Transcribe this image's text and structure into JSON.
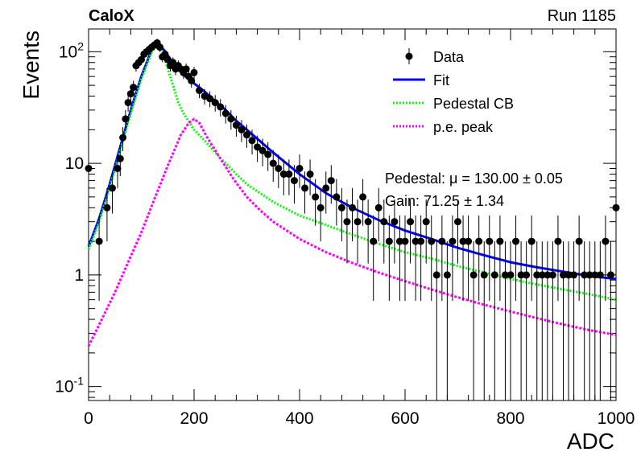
{
  "header": {
    "left_label": "CaloX",
    "right_label": "Run 1185"
  },
  "stats_box": {
    "line1": "Pedestal: μ = 130.00 ± 0.05",
    "line2": "Gain: 71.25 ± 1.34"
  },
  "chart_data": {
    "type": "scatter",
    "title": "",
    "xlabel": "ADC",
    "ylabel": "Events",
    "xlim": [
      0,
      1000
    ],
    "ylim": [
      0.075,
      160
    ],
    "yscale": "log",
    "grid": false,
    "legend_position": "top-right",
    "x_ticks": [
      "0",
      "200",
      "400",
      "600",
      "800",
      "1000"
    ],
    "y_ticks": [
      "10^-1",
      "1",
      "10",
      "10^2"
    ],
    "legend": [
      {
        "label": "Data",
        "color": "#000000",
        "style": "marker"
      },
      {
        "label": "Fit",
        "color": "#0000ff",
        "style": "solid"
      },
      {
        "label": "Pedestal CB",
        "color": "#00ff00",
        "style": "dotted"
      },
      {
        "label": "p.e. peak",
        "color": "#ff00ff",
        "style": "dotted"
      }
    ],
    "series": [
      {
        "name": "Data",
        "type": "scatter",
        "color": "#000000",
        "x": [
          0,
          20,
          35,
          45,
          55,
          60,
          65,
          70,
          75,
          80,
          85,
          90,
          95,
          100,
          105,
          110,
          115,
          120,
          125,
          130,
          135,
          140,
          145,
          150,
          155,
          160,
          165,
          170,
          175,
          180,
          185,
          190,
          195,
          200,
          210,
          220,
          230,
          240,
          250,
          260,
          270,
          280,
          290,
          300,
          310,
          320,
          330,
          340,
          350,
          360,
          370,
          380,
          390,
          400,
          410,
          420,
          430,
          440,
          450,
          460,
          470,
          480,
          490,
          500,
          510,
          520,
          530,
          540,
          550,
          560,
          570,
          580,
          590,
          600,
          610,
          620,
          630,
          640,
          650,
          660,
          670,
          680,
          690,
          700,
          710,
          720,
          730,
          740,
          750,
          760,
          770,
          780,
          790,
          800,
          810,
          820,
          830,
          840,
          850,
          860,
          870,
          880,
          890,
          900,
          910,
          920,
          930,
          940,
          950,
          960,
          970,
          980,
          990,
          1000
        ],
        "y": [
          9,
          2,
          4,
          6,
          9,
          11,
          17,
          25,
          35,
          42,
          48,
          75,
          80,
          85,
          95,
          100,
          105,
          110,
          115,
          120,
          110,
          90,
          95,
          85,
          75,
          80,
          70,
          75,
          70,
          65,
          70,
          60,
          55,
          65,
          45,
          40,
          38,
          35,
          32,
          28,
          25,
          22,
          20,
          18,
          16,
          14,
          13,
          12,
          10,
          9,
          8,
          8,
          7,
          9,
          6,
          8,
          5,
          4,
          6,
          7,
          5,
          4,
          3,
          4,
          3,
          5,
          3,
          2,
          4,
          3,
          2,
          3,
          2,
          2,
          3,
          2,
          2,
          3,
          2,
          1,
          2,
          1,
          2,
          3,
          2,
          2,
          1,
          2,
          1,
          2,
          1,
          2,
          1,
          1,
          2,
          1,
          1,
          2,
          1,
          1,
          1,
          1,
          2,
          1,
          1,
          1,
          2,
          1,
          1,
          1,
          1,
          2,
          1,
          4
        ]
      },
      {
        "name": "Fit",
        "type": "line",
        "color": "#0000ff",
        "x": [
          0,
          20,
          40,
          60,
          80,
          100,
          120,
          130,
          140,
          160,
          180,
          200,
          220,
          240,
          260,
          280,
          300,
          350,
          400,
          450,
          500,
          550,
          600,
          650,
          700,
          750,
          800,
          850,
          900,
          950,
          1000
        ],
        "y": [
          1.8,
          3.2,
          6.5,
          14,
          30,
          60,
          105,
          118,
          108,
          80,
          62,
          52,
          44,
          36,
          30,
          24,
          20,
          12.5,
          8,
          5.4,
          4,
          3.1,
          2.5,
          2.1,
          1.75,
          1.5,
          1.3,
          1.17,
          1.07,
          0.98,
          0.92
        ]
      },
      {
        "name": "Pedestal CB",
        "type": "line",
        "color": "#00ff00",
        "x": [
          0,
          20,
          40,
          60,
          80,
          100,
          120,
          130,
          140,
          160,
          170,
          180,
          200,
          220,
          240,
          260,
          280,
          300,
          350,
          400,
          450,
          500,
          550,
          600,
          650,
          700,
          750,
          800,
          850,
          900,
          950,
          1000
        ],
        "y": [
          1.7,
          3,
          6,
          13,
          28,
          57,
          100,
          115,
          100,
          50,
          35,
          28,
          20,
          16,
          12.5,
          10,
          8,
          6.5,
          4.5,
          3.4,
          2.8,
          2.3,
          1.9,
          1.6,
          1.4,
          1.2,
          1.05,
          0.92,
          0.82,
          0.74,
          0.67,
          0.6
        ]
      },
      {
        "name": "p.e. peak",
        "type": "line",
        "color": "#ff00ff",
        "x": [
          0,
          25,
          50,
          75,
          100,
          125,
          150,
          175,
          190,
          200,
          210,
          225,
          250,
          275,
          300,
          325,
          350,
          400,
          450,
          500,
          550,
          600,
          650,
          700,
          750,
          800,
          850,
          900,
          950,
          1000
        ],
        "y": [
          0.23,
          0.4,
          0.7,
          1.3,
          2.4,
          4.8,
          9.5,
          18,
          23,
          25,
          23,
          17,
          11,
          7.2,
          5,
          3.8,
          3,
          2.1,
          1.6,
          1.28,
          1.05,
          0.88,
          0.74,
          0.63,
          0.54,
          0.47,
          0.41,
          0.36,
          0.32,
          0.29
        ]
      }
    ]
  }
}
